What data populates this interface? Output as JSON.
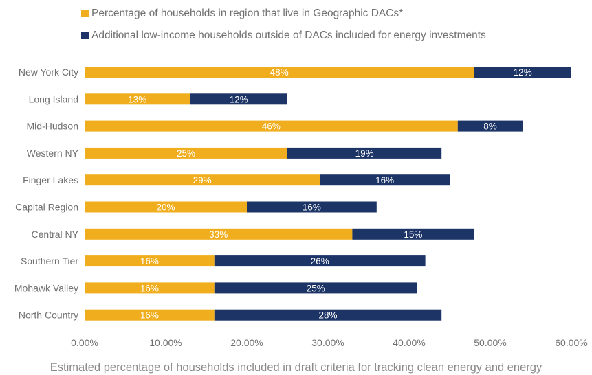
{
  "colors": {
    "geographic": "#f0ae1e",
    "lowincome": "#1c3466",
    "axis_text": "#6f6f6f",
    "bar_label": "#ffffff"
  },
  "legend": [
    {
      "label": "Percentage of households in region that live in Geographic DACs*",
      "color": "#f0ae1e"
    },
    {
      "label": "Additional low-income households outside of DACs included for energy investments",
      "color": "#1c3466"
    }
  ],
  "chart_data": {
    "type": "bar",
    "orientation": "horizontal",
    "stacked": true,
    "title": "",
    "xlabel": "Estimated percentage of households included in draft criteria for tracking clean energy and energy",
    "ylabel": "",
    "xlim": [
      0,
      60
    ],
    "x_ticks": [
      "0.00%",
      "10.00%",
      "20.00%",
      "30.00%",
      "40.00%",
      "50.00%",
      "60.00%"
    ],
    "categories": [
      "New York City",
      "Long Island",
      "Mid-Hudson",
      "Western NY",
      "Finger Lakes",
      "Capital Region",
      "Central NY",
      "Southern Tier",
      "Mohawk Valley",
      "North Country"
    ],
    "series": [
      {
        "name": "Percentage of households in region that live in Geographic DACs*",
        "values": [
          48,
          13,
          46,
          25,
          29,
          20,
          33,
          16,
          16,
          16
        ],
        "labels": [
          "48%",
          "13%",
          "46%",
          "25%",
          "29%",
          "20%",
          "33%",
          "16%",
          "16%",
          "16%"
        ]
      },
      {
        "name": "Additional low-income households outside of DACs included for energy investments",
        "values": [
          12,
          12,
          8,
          19,
          16,
          16,
          15,
          26,
          25,
          28
        ],
        "labels": [
          "12%",
          "12%",
          "8%",
          "19%",
          "16%",
          "16%",
          "15%",
          "26%",
          "25%",
          "28%"
        ]
      }
    ],
    "grid": false,
    "legend_position": "top"
  }
}
